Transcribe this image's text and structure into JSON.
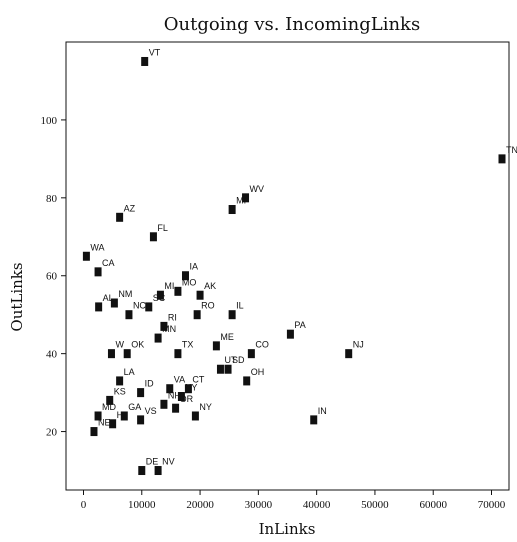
{
  "chart_data": {
    "type": "scatter",
    "title": "Outgoing vs. IncomingLinks",
    "xlabel": "InLinks",
    "ylabel": "OutLinks",
    "xlim": [
      -3000,
      73000
    ],
    "ylim": [
      5,
      120
    ],
    "xticks": [
      0,
      10000,
      20000,
      30000,
      40000,
      50000,
      60000,
      70000
    ],
    "yticks": [
      20,
      40,
      60,
      80,
      100
    ],
    "grid": false,
    "points": [
      {
        "label": "VT",
        "x": 10500,
        "y": 115
      },
      {
        "label": "TN",
        "x": 71800,
        "y": 90
      },
      {
        "label": "WV",
        "x": 27800,
        "y": 80
      },
      {
        "label": "MI",
        "x": 25500,
        "y": 77
      },
      {
        "label": "AZ",
        "x": 6200,
        "y": 75
      },
      {
        "label": "FL",
        "x": 12000,
        "y": 70
      },
      {
        "label": "WA",
        "x": 500,
        "y": 65
      },
      {
        "label": "CA",
        "x": 2500,
        "y": 61
      },
      {
        "label": "IA",
        "x": 17500,
        "y": 60
      },
      {
        "label": "AL",
        "x": 2600,
        "y": 52
      },
      {
        "label": "NM",
        "x": 5300,
        "y": 53
      },
      {
        "label": "MI",
        "x": 13200,
        "y": 55
      },
      {
        "label": "MO",
        "x": 16200,
        "y": 56
      },
      {
        "label": "AK",
        "x": 20000,
        "y": 55
      },
      {
        "label": "RO",
        "x": 19500,
        "y": 50
      },
      {
        "label": "IL",
        "x": 25500,
        "y": 50
      },
      {
        "label": "SC",
        "x": 11200,
        "y": 52
      },
      {
        "label": "NC",
        "x": 7800,
        "y": 50
      },
      {
        "label": "RI",
        "x": 13800,
        "y": 47
      },
      {
        "label": "PA",
        "x": 35500,
        "y": 45
      },
      {
        "label": "NJ",
        "x": 45500,
        "y": 40
      },
      {
        "label": "W",
        "x": 4800,
        "y": 40
      },
      {
        "label": "OK",
        "x": 7500,
        "y": 40
      },
      {
        "label": "MN",
        "x": 12800,
        "y": 44
      },
      {
        "label": "TX",
        "x": 16200,
        "y": 40
      },
      {
        "label": "ME",
        "x": 22800,
        "y": 42
      },
      {
        "label": "CO",
        "x": 28800,
        "y": 40
      },
      {
        "label": "UT",
        "x": 23500,
        "y": 36
      },
      {
        "label": "SD",
        "x": 24800,
        "y": 36
      },
      {
        "label": "OH",
        "x": 28000,
        "y": 33
      },
      {
        "label": "LA",
        "x": 6200,
        "y": 33
      },
      {
        "label": "ID",
        "x": 9800,
        "y": 30
      },
      {
        "label": "VA",
        "x": 14800,
        "y": 31
      },
      {
        "label": "KY",
        "x": 16800,
        "y": 29
      },
      {
        "label": "CT",
        "x": 18000,
        "y": 31
      },
      {
        "label": "NH",
        "x": 13800,
        "y": 27
      },
      {
        "label": "OR",
        "x": 15800,
        "y": 26
      },
      {
        "label": "NY",
        "x": 19200,
        "y": 24
      },
      {
        "label": "IN",
        "x": 39500,
        "y": 23
      },
      {
        "label": "KS",
        "x": 4500,
        "y": 28
      },
      {
        "label": "MD",
        "x": 2500,
        "y": 24
      },
      {
        "label": "GA",
        "x": 7000,
        "y": 24
      },
      {
        "label": "VS",
        "x": 9800,
        "y": 23
      },
      {
        "label": "NE",
        "x": 1800,
        "y": 20
      },
      {
        "label": "HI",
        "x": 5000,
        "y": 22
      },
      {
        "label": "DE",
        "x": 10000,
        "y": 10
      },
      {
        "label": "NV",
        "x": 12800,
        "y": 10
      }
    ]
  }
}
